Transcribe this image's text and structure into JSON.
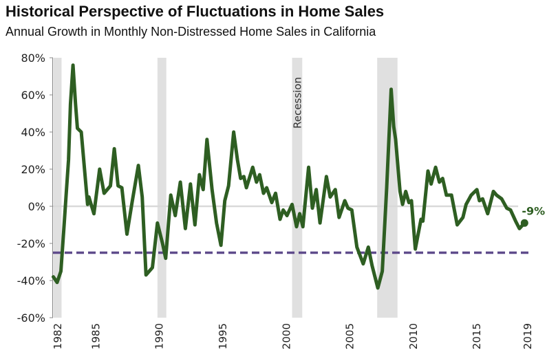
{
  "chart_data": {
    "type": "line",
    "title": "Historical Perspective of Fluctuations in Home Sales",
    "subtitle": "Annual Growth in Monthly Non-Distressed Home Sales in California",
    "xlabel": "",
    "ylabel": "",
    "ylim": [
      -60,
      80
    ],
    "xlim": [
      1982,
      2019
    ],
    "y_ticks": [
      "80%",
      "60%",
      "40%",
      "20%",
      "0%",
      "-20%",
      "-40%",
      "-60%"
    ],
    "y_tick_values": [
      80,
      60,
      40,
      20,
      0,
      -20,
      -40,
      -60
    ],
    "x_ticks": [
      "1982",
      "1985",
      "1990",
      "1995",
      "2000",
      "2005",
      "2010",
      "2015",
      "2019"
    ],
    "x_tick_values": [
      1982,
      1985,
      1990,
      1995,
      2000,
      2005,
      2010,
      2015,
      2019
    ],
    "grid": false,
    "zero_line": true,
    "recession_label": "Recession",
    "recessions": [
      [
        1981.7,
        1982.35
      ],
      [
        1989.9,
        1990.6
      ],
      [
        2000.5,
        2001.3
      ],
      [
        2007.2,
        2008.8
      ]
    ],
    "reference_line": {
      "value": -25,
      "style": "dashed",
      "color": "#5f4b8b"
    },
    "end_label": "-9%",
    "series": [
      {
        "color": "#2e5e22",
        "points": [
          [
            1981.7,
            -38
          ],
          [
            1982.0,
            -41
          ],
          [
            1982.3,
            -35
          ],
          [
            1982.55,
            -10
          ],
          [
            1982.7,
            5
          ],
          [
            1982.9,
            25
          ],
          [
            1983.05,
            55
          ],
          [
            1983.25,
            76
          ],
          [
            1983.45,
            55
          ],
          [
            1983.6,
            42
          ],
          [
            1983.9,
            40
          ],
          [
            1984.4,
            1
          ],
          [
            1984.5,
            5
          ],
          [
            1984.9,
            -4
          ],
          [
            1985.35,
            20
          ],
          [
            1985.7,
            7
          ],
          [
            1986.2,
            11
          ],
          [
            1986.5,
            31
          ],
          [
            1986.8,
            11
          ],
          [
            1987.1,
            10
          ],
          [
            1987.5,
            -15
          ],
          [
            1987.9,
            2
          ],
          [
            1988.4,
            22
          ],
          [
            1988.7,
            5
          ],
          [
            1989.0,
            -37
          ],
          [
            1989.5,
            -33
          ],
          [
            1989.9,
            -9
          ],
          [
            1990.3,
            -20
          ],
          [
            1990.55,
            -28
          ],
          [
            1990.95,
            6
          ],
          [
            1991.3,
            -5
          ],
          [
            1991.7,
            13
          ],
          [
            1992.1,
            -12
          ],
          [
            1992.5,
            12
          ],
          [
            1992.85,
            -10
          ],
          [
            1993.2,
            17
          ],
          [
            1993.5,
            9
          ],
          [
            1993.8,
            36
          ],
          [
            1994.2,
            9
          ],
          [
            1994.55,
            -9
          ],
          [
            1994.9,
            -21
          ],
          [
            1995.2,
            3
          ],
          [
            1995.5,
            11
          ],
          [
            1995.9,
            40
          ],
          [
            1996.2,
            25
          ],
          [
            1996.45,
            15
          ],
          [
            1996.7,
            16
          ],
          [
            1996.9,
            10
          ],
          [
            1997.4,
            21
          ],
          [
            1997.7,
            13
          ],
          [
            1997.95,
            17
          ],
          [
            1998.25,
            7
          ],
          [
            1998.5,
            10
          ],
          [
            1998.9,
            2
          ],
          [
            1999.2,
            7
          ],
          [
            1999.55,
            -7
          ],
          [
            1999.8,
            -2
          ],
          [
            2000.1,
            -5
          ],
          [
            2000.5,
            1
          ],
          [
            2000.85,
            -11
          ],
          [
            2001.1,
            -4
          ],
          [
            2001.35,
            -11
          ],
          [
            2001.8,
            21
          ],
          [
            2002.1,
            -1
          ],
          [
            2002.4,
            9
          ],
          [
            2002.7,
            -9
          ],
          [
            2003.2,
            16
          ],
          [
            2003.5,
            5
          ],
          [
            2003.9,
            9
          ],
          [
            2004.2,
            -6
          ],
          [
            2004.65,
            3
          ],
          [
            2004.9,
            -1
          ],
          [
            2005.2,
            -2
          ],
          [
            2005.6,
            -22
          ],
          [
            2006.1,
            -31
          ],
          [
            2006.5,
            -22
          ],
          [
            2006.8,
            -32
          ],
          [
            2007.25,
            -44
          ],
          [
            2007.6,
            -35
          ],
          [
            2007.95,
            10
          ],
          [
            2008.3,
            63
          ],
          [
            2008.5,
            43
          ],
          [
            2008.65,
            36
          ],
          [
            2009.0,
            8
          ],
          [
            2009.2,
            1
          ],
          [
            2009.45,
            8
          ],
          [
            2009.7,
            2
          ],
          [
            2009.9,
            3
          ],
          [
            2010.2,
            -23
          ],
          [
            2010.65,
            -7
          ],
          [
            2010.8,
            -8
          ],
          [
            2011.2,
            19
          ],
          [
            2011.45,
            12
          ],
          [
            2011.8,
            21
          ],
          [
            2012.1,
            13
          ],
          [
            2012.35,
            15
          ],
          [
            2012.65,
            6
          ],
          [
            2013.05,
            6
          ],
          [
            2013.5,
            -10
          ],
          [
            2013.95,
            -6
          ],
          [
            2014.2,
            1
          ],
          [
            2014.6,
            6
          ],
          [
            2015.05,
            9
          ],
          [
            2015.25,
            3
          ],
          [
            2015.5,
            4
          ],
          [
            2015.9,
            -4
          ],
          [
            2016.35,
            8
          ],
          [
            2016.6,
            6
          ],
          [
            2017.0,
            4
          ],
          [
            2017.4,
            -1
          ],
          [
            2017.7,
            -2
          ],
          [
            2018.1,
            -8
          ],
          [
            2018.4,
            -12
          ],
          [
            2018.8,
            -9
          ]
        ]
      }
    ]
  }
}
